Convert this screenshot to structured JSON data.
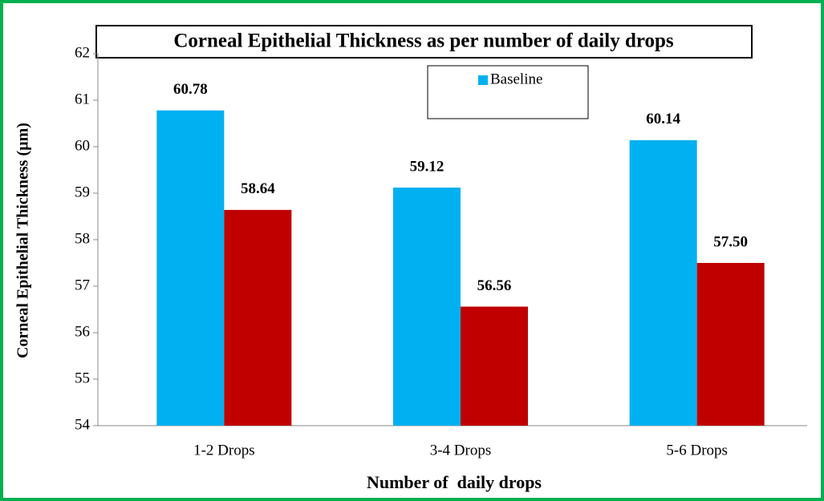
{
  "chart_data": {
    "type": "bar",
    "title": "Corneal Epithelial Thickness as per number of daily drops",
    "xlabel": "Number of  daily drops",
    "ylabel": "Corneal Epithelial Thickness (µm)",
    "categories": [
      "1-2 Drops",
      "3-4 Drops",
      "5-6 Drops"
    ],
    "series": [
      {
        "name": "Baseline",
        "color": "#00b0f0",
        "values": [
          60.78,
          59.12,
          60.14
        ],
        "value_labels": [
          "60.78",
          "59.12",
          "60.14"
        ]
      },
      {
        "color": "#c00000",
        "values": [
          58.64,
          56.56,
          57.5
        ],
        "value_labels": [
          "58.64",
          "56.56",
          "57.50"
        ]
      }
    ],
    "ylim": [
      54,
      62
    ],
    "yticks": [
      54,
      55,
      56,
      57,
      58,
      59,
      60,
      61,
      62
    ]
  }
}
